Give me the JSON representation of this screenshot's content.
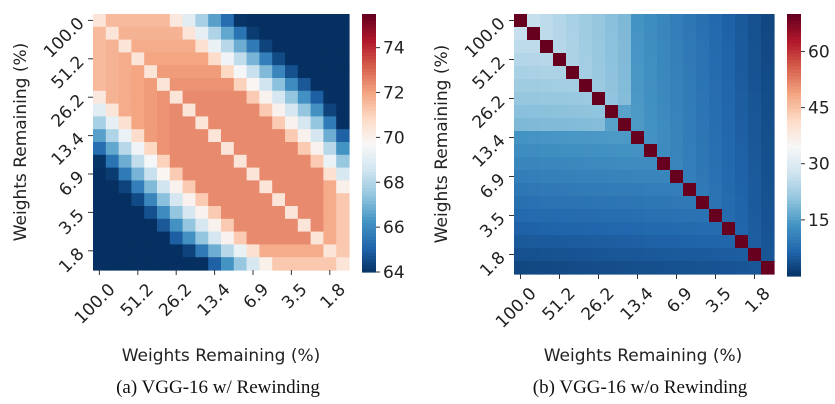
{
  "chart_data": [
    {
      "type": "heatmap",
      "caption": "(a)  VGG-16 w/ Rewinding",
      "xlabel": "Weights Remaining (%)",
      "ylabel": "Weights Remaining (%)",
      "tick_labels": [
        "100.0",
        "51.2",
        "26.2",
        "13.4",
        "6.9",
        "3.5",
        "1.8"
      ],
      "colorbar": {
        "min": 64,
        "max": 75.5,
        "ticks": [
          64,
          66,
          68,
          70,
          72,
          74
        ]
      },
      "n": 20,
      "mode": "rewinding"
    },
    {
      "type": "heatmap",
      "caption": "(b)  VGG-16 w/o Rewinding",
      "xlabel": "Weights Remaining (%)",
      "ylabel": "Weights Remaining (%)",
      "tick_labels": [
        "100.0",
        "51.2",
        "26.2",
        "13.4",
        "6.9",
        "3.5",
        "1.8"
      ],
      "colorbar": {
        "min": 0,
        "max": 70,
        "ticks": [
          15,
          30,
          45,
          60
        ]
      },
      "n": 20,
      "mode": "no-rewinding"
    }
  ],
  "colors": {
    "scale": [
      "#053061",
      "#2166ac",
      "#4393c3",
      "#92c5de",
      "#d1e5f0",
      "#f7f7f7",
      "#fddbc7",
      "#f4a582",
      "#d6604d",
      "#b2182b",
      "#67001f"
    ]
  }
}
